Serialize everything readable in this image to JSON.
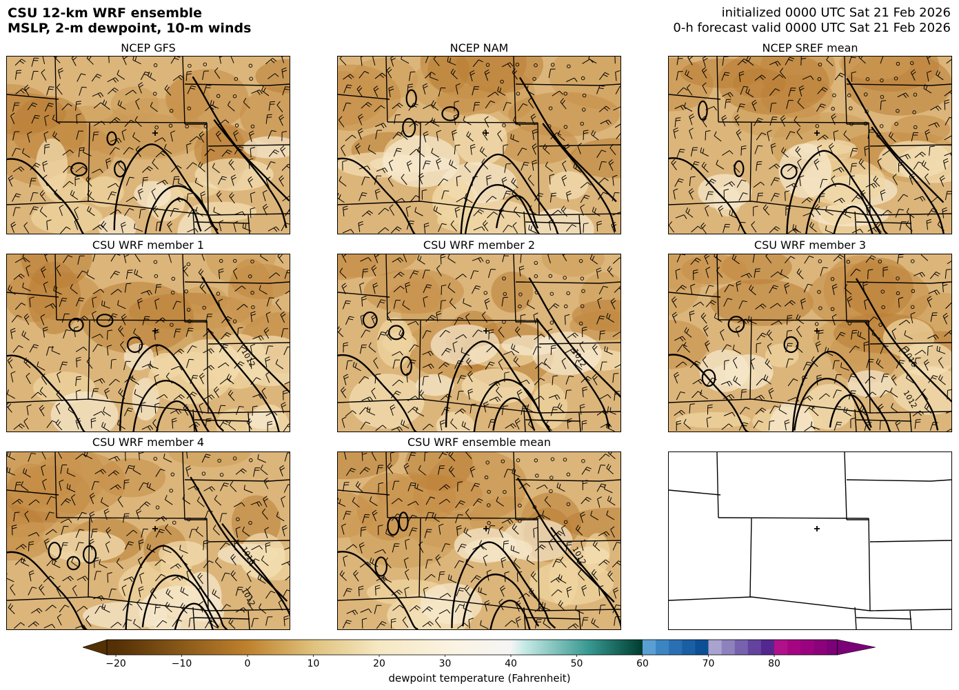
{
  "header": {
    "title_line1": "CSU 12-km WRF ensemble",
    "title_line2": "MSLP, 2-m dewpoint, 10-m winds",
    "init_line": "initialized 0000 UTC Sat 21 Feb 2026",
    "valid_line": "0-h forecast valid 0000 UTC Sat 21 Feb 2026"
  },
  "panels": [
    {
      "title": "NCEP GFS",
      "contour_labels": []
    },
    {
      "title": "NCEP NAM",
      "contour_labels": []
    },
    {
      "title": "NCEP SREF mean",
      "contour_labels": []
    },
    {
      "title": "CSU WRF member 1",
      "contour_labels": [
        "1012"
      ]
    },
    {
      "title": "CSU WRF member 2",
      "contour_labels": [
        "1012"
      ]
    },
    {
      "title": "CSU WRF member 3",
      "contour_labels": [
        "1016",
        "1012"
      ]
    },
    {
      "title": "CSU WRF member 4",
      "contour_labels": [
        "1016",
        "1012"
      ]
    },
    {
      "title": "CSU WRF ensemble mean",
      "contour_labels": [
        "1012"
      ]
    },
    {
      "title": "",
      "contour_labels": []
    }
  ],
  "colorbar": {
    "label": "dewpoint temperature (Fahrenheit)",
    "ticks": [
      "−20",
      "−10",
      "0",
      "10",
      "20",
      "30",
      "40",
      "50",
      "60",
      "70",
      "80"
    ],
    "colors": {
      "brown_dark": "#543005",
      "brown": "#bf812d",
      "tan": "#dfc27d",
      "cream": "#f6e8c3",
      "white": "#f5f5f5",
      "teal_light": "#c7eae5",
      "teal": "#35978f",
      "teal_dark": "#003c30",
      "blue_light": "#6baed6",
      "blue": "#08519c",
      "purple_light": "#9e9ac8",
      "purple": "#54278f",
      "magenta": "#ae017e",
      "magenta_dark": "#7a0177"
    }
  }
}
